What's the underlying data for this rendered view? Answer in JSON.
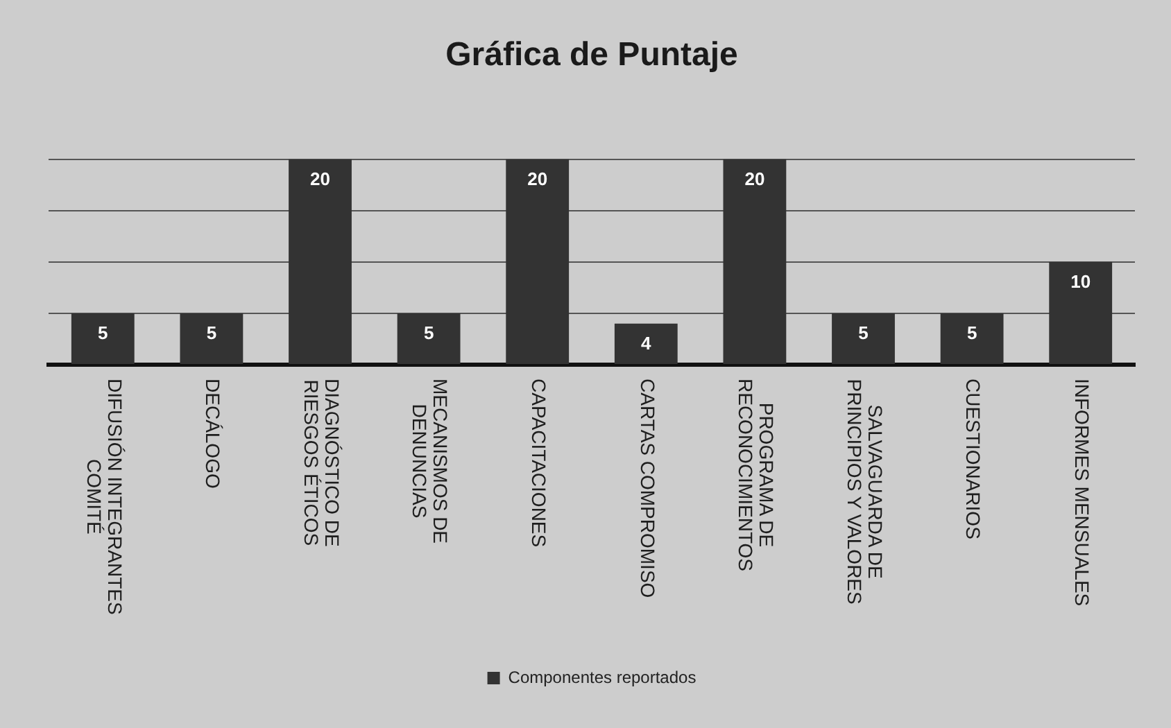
{
  "chart_data": {
    "type": "bar",
    "title": "Gráfica de Puntaje",
    "categories": [
      "DIFUSIÓN INTEGRANTES COMITÉ",
      "DECÁLOGO",
      "DIAGNÓSTICO DE RIESGOS ÉTICOS",
      "MECANISMOS DE DENUNCIAS",
      "CAPACITACIONES",
      "CARTAS COMPROMISO",
      "PROGRAMA DE RECONOCIMIENTOS",
      "SALVAGUARDA DE PRINCIPIOS Y VALORES",
      "CUESTIONARIOS",
      "INFORMES MENSUALES"
    ],
    "series": [
      {
        "name": "Componentes reportados",
        "color": "#333333",
        "values": [
          5,
          5,
          20,
          5,
          20,
          4,
          20,
          5,
          5,
          10
        ]
      }
    ],
    "ylim": [
      0,
      20
    ],
    "yticks": [
      {
        "value": 0,
        "label": null
      },
      {
        "value": 5,
        "label": null
      },
      {
        "value": 10,
        "label": null
      },
      {
        "value": 15,
        "label": null
      },
      {
        "value": 20,
        "label": null
      }
    ],
    "tick_labels": "x",
    "grid": "y",
    "legend": "bottom",
    "data_labels": true
  }
}
